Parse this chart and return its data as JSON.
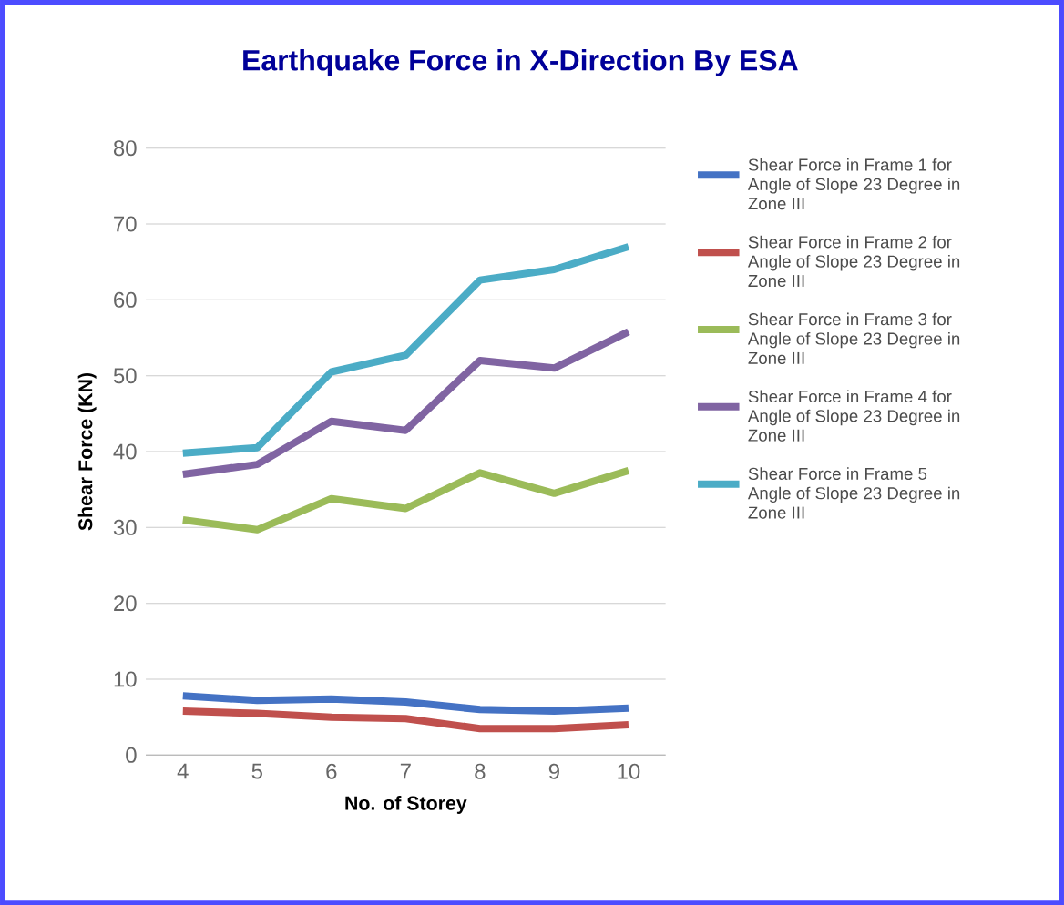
{
  "chart_data": {
    "type": "line",
    "title": "Earthquake Force in X-Direction By ESA",
    "xlabel": "No. of Storey",
    "ylabel": "Shear Force (KN)",
    "categories": [
      "4",
      "5",
      "6",
      "7",
      "8",
      "9",
      "10"
    ],
    "series": [
      {
        "name": "Shear Force in Frame 1 for Angle of Slope 23 Degree in Zone III",
        "color": "#4472c4",
        "values": [
          7.8,
          7.2,
          7.4,
          7,
          6,
          5.8,
          6.2
        ]
      },
      {
        "name": "Shear Force in Frame 2 for Angle of Slope 23 Degree in Zone III",
        "color": "#c0504d",
        "values": [
          5.8,
          5.5,
          5,
          4.8,
          3.5,
          3.5,
          4
        ]
      },
      {
        "name": "Shear Force in Frame 3 for Angle of Slope 23 Degree in Zone III",
        "color": "#9bbb59",
        "values": [
          31,
          29.7,
          33.8,
          32.5,
          37.2,
          34.5,
          37.5
        ]
      },
      {
        "name": "Shear Force in Frame 4 for Angle of Slope 23 Degree in Zone III",
        "color": "#8064a2",
        "values": [
          37,
          38.3,
          44,
          42.8,
          52,
          51,
          55.8
        ]
      },
      {
        "name": "Shear Force in Frame 5 Angle of Slope 23 Degree in Zone III",
        "color": "#4bacc6",
        "values": [
          39.8,
          40.5,
          50.5,
          52.7,
          62.6,
          64,
          67
        ]
      }
    ],
    "ylim": [
      0,
      80
    ],
    "yticks": [
      0,
      10,
      20,
      30,
      40,
      50,
      60,
      70,
      80
    ],
    "grid": "y",
    "legend": "right",
    "marker": "none",
    "line_style": "solid"
  }
}
